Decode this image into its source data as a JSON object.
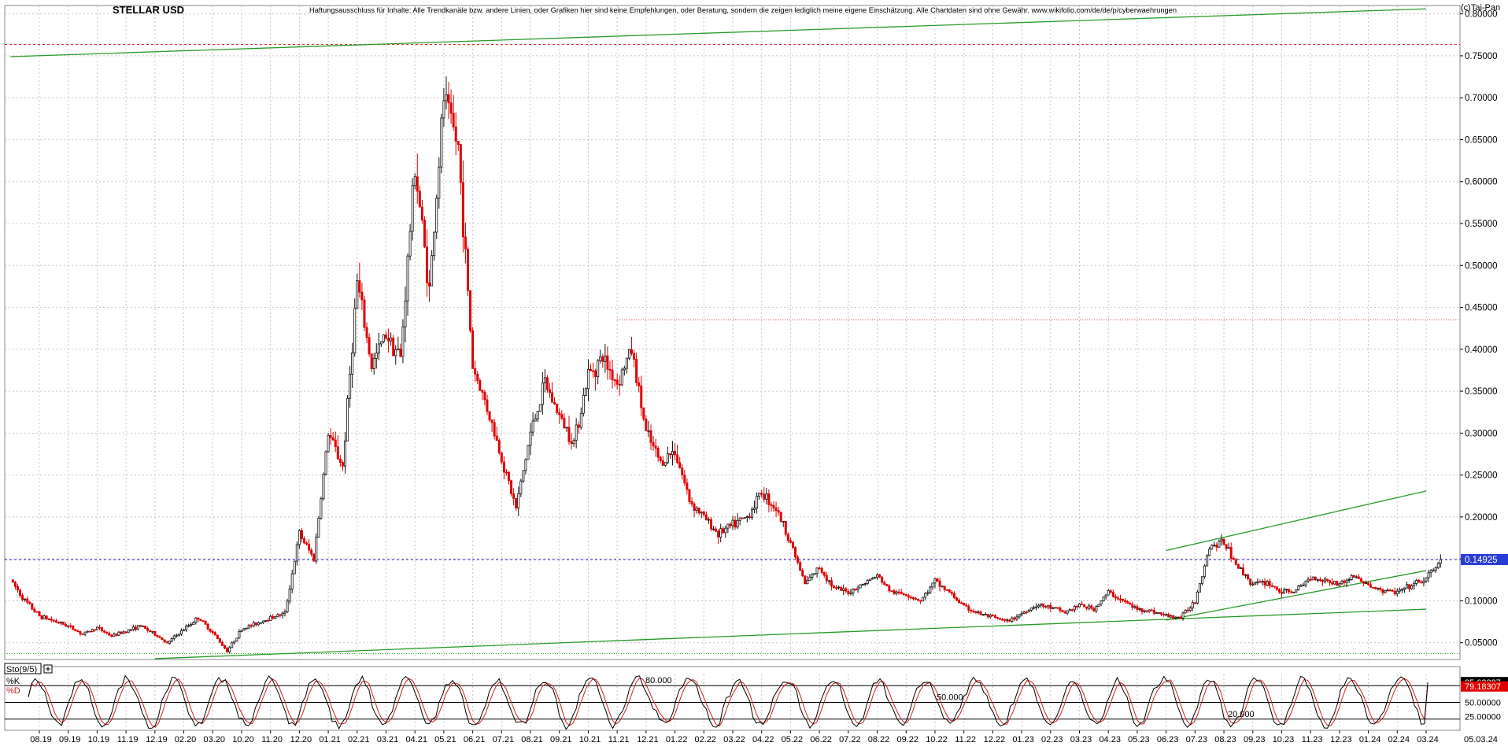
{
  "chart_data": [
    {
      "type": "candlestick",
      "title": "STELLAR USD",
      "disclaimer": "Haftungsausschluss für Inhalte: Alle Trendkanäle bzw. andere Linien, oder Grafiken hier sind keine Empfehlungen, oder Beratung, sondern die zeigen lediglich meine eigene Einschätzung. Alle Chartdaten sind ohne Gewähr.  www.wikifolio.com/de/de/p/cyberwaehrungen",
      "watermark": "(c)Tai-Pan",
      "ylim": [
        0.03,
        0.81
      ],
      "yticks": [
        "0.80000",
        "0.75000",
        "0.70000",
        "0.65000",
        "0.60000",
        "0.55000",
        "0.50000",
        "0.45000",
        "0.40000",
        "0.35000",
        "0.30000",
        "0.25000",
        "0.20000",
        "0.15000",
        "0.10000",
        "0.05000"
      ],
      "ytick_values": [
        0.8,
        0.75,
        0.7,
        0.65,
        0.6,
        0.55,
        0.5,
        0.45,
        0.4,
        0.35,
        0.3,
        0.25,
        0.2,
        0.15,
        0.1,
        0.05
      ],
      "xticks": [
        "08.19",
        "09.19",
        "10.19",
        "11.19",
        "12.19",
        "02.20",
        "03.20",
        "10.20",
        "11.20",
        "12.20",
        "01.21",
        "02.21",
        "03.21",
        "04.21",
        "05.21",
        "06.21",
        "07.21",
        "08.21",
        "09.21",
        "10.21",
        "11.21",
        "12.21",
        "01.22",
        "02.22",
        "03.22",
        "04.22",
        "05.22",
        "06.22",
        "07.22",
        "08.22",
        "09.22",
        "10.22",
        "11.22",
        "12.22",
        "01.23",
        "02.23",
        "03.23",
        "04.23",
        "05.23",
        "06.23",
        "07.23",
        "08.23",
        "09.23",
        "10.23",
        "11.23",
        "12.23",
        "01.24",
        "02.24",
        "03.24"
      ],
      "last_date": "05.03.24",
      "current_price_label": "0.14925",
      "current_price": 0.14925,
      "grid": true,
      "reference_lines": [
        {
          "kind": "horizontal",
          "value": 0.7635,
          "color": "#e03030",
          "style": "dashed"
        },
        {
          "kind": "horizontal",
          "value": 0.14925,
          "color": "#2020d0",
          "style": "dashed"
        },
        {
          "kind": "horizontal",
          "value": 0.435,
          "color": "#e03030",
          "style": "dotted",
          "from_date": "11.21"
        },
        {
          "kind": "horizontal",
          "value": 0.037,
          "color": "#30b030",
          "style": "dotted"
        }
      ],
      "trend_lines": [
        {
          "from": [
            "07.19",
            0.749
          ],
          "to": [
            "03.24",
            0.806
          ],
          "color": "#2a9a2a"
        },
        {
          "from": [
            "12.19",
            0.031
          ],
          "to": [
            "03.24",
            0.09
          ],
          "color": "#2a9a2a"
        },
        {
          "from": [
            "06.23",
            0.16
          ],
          "to": [
            "03.24",
            0.231
          ],
          "color": "#2a9a2a"
        },
        {
          "from": [
            "06.23",
            0.077
          ],
          "to": [
            "03.24",
            0.136
          ],
          "color": "#2a9a2a"
        }
      ],
      "price_path": [
        [
          "07.19",
          0.125
        ],
        [
          "07.19",
          0.1
        ],
        [
          "08.19",
          0.082
        ],
        [
          "09.19",
          0.07
        ],
        [
          "09.19",
          0.06
        ],
        [
          "10.19",
          0.068
        ],
        [
          "10.19",
          0.058
        ],
        [
          "11.19",
          0.064
        ],
        [
          "11.19",
          0.07
        ],
        [
          "12.19",
          0.06
        ],
        [
          "12.19",
          0.048
        ],
        [
          "01.20",
          0.052
        ],
        [
          "02.20",
          0.066
        ],
        [
          "02.20",
          0.08
        ],
        [
          "03.20",
          0.062
        ],
        [
          "03.20",
          0.04
        ],
        [
          "10.20",
          0.066
        ],
        [
          "11.20",
          0.08
        ],
        [
          "11.20",
          0.085
        ],
        [
          "12.20",
          0.18
        ],
        [
          "12.20",
          0.15
        ],
        [
          "01.21",
          0.3
        ],
        [
          "01.21",
          0.26
        ],
        [
          "02.21",
          0.48
        ],
        [
          "02.21",
          0.38
        ],
        [
          "03.21",
          0.42
        ],
        [
          "03.21",
          0.39
        ],
        [
          "04.21",
          0.62
        ],
        [
          "04.21",
          0.47
        ],
        [
          "05.21",
          0.7
        ],
        [
          "05.21",
          0.64
        ],
        [
          "06.21",
          0.38
        ],
        [
          "06.21",
          0.33
        ],
        [
          "07.21",
          0.27
        ],
        [
          "07.21",
          0.21
        ],
        [
          "08.21",
          0.3
        ],
        [
          "08.21",
          0.36
        ],
        [
          "09.21",
          0.32
        ],
        [
          "09.21",
          0.29
        ],
        [
          "10.21",
          0.37
        ],
        [
          "10.21",
          0.39
        ],
        [
          "11.21",
          0.36
        ],
        [
          "11.21",
          0.4
        ],
        [
          "12.21",
          0.3
        ],
        [
          "12.21",
          0.265
        ],
        [
          "01.22",
          0.28
        ],
        [
          "01.22",
          0.22
        ],
        [
          "02.22",
          0.2
        ],
        [
          "02.22",
          0.18
        ],
        [
          "03.22",
          0.19
        ],
        [
          "03.22",
          0.2
        ],
        [
          "04.22",
          0.23
        ],
        [
          "04.22",
          0.21
        ],
        [
          "05.22",
          0.17
        ],
        [
          "05.22",
          0.12
        ],
        [
          "06.22",
          0.14
        ],
        [
          "06.22",
          0.115
        ],
        [
          "07.22",
          0.11
        ],
        [
          "07.22",
          0.12
        ],
        [
          "08.22",
          0.13
        ],
        [
          "08.22",
          0.11
        ],
        [
          "09.22",
          0.108
        ],
        [
          "09.22",
          0.1
        ],
        [
          "10.22",
          0.123
        ],
        [
          "10.22",
          0.11
        ],
        [
          "11.22",
          0.093
        ],
        [
          "11.22",
          0.085
        ],
        [
          "12.22",
          0.08
        ],
        [
          "12.22",
          0.075
        ],
        [
          "01.23",
          0.085
        ],
        [
          "01.23",
          0.095
        ],
        [
          "02.23",
          0.092
        ],
        [
          "02.23",
          0.086
        ],
        [
          "03.23",
          0.095
        ],
        [
          "03.23",
          0.09
        ],
        [
          "04.23",
          0.11
        ],
        [
          "04.23",
          0.1
        ],
        [
          "05.23",
          0.09
        ],
        [
          "05.23",
          0.088
        ],
        [
          "06.23",
          0.082
        ],
        [
          "06.23",
          0.08
        ],
        [
          "07.23",
          0.1
        ],
        [
          "07.23",
          0.165
        ],
        [
          "08.23",
          0.17
        ],
        [
          "08.23",
          0.14
        ],
        [
          "09.23",
          0.12
        ],
        [
          "09.23",
          0.122
        ],
        [
          "10.23",
          0.11
        ],
        [
          "10.23",
          0.112
        ],
        [
          "11.23",
          0.128
        ],
        [
          "11.23",
          0.125
        ],
        [
          "12.23",
          0.12
        ],
        [
          "12.23",
          0.13
        ],
        [
          "01.24",
          0.118
        ],
        [
          "01.24",
          0.112
        ],
        [
          "02.24",
          0.11
        ],
        [
          "02.24",
          0.118
        ],
        [
          "03.24",
          0.126
        ],
        [
          "03.24",
          0.149
        ]
      ]
    },
    {
      "type": "line",
      "indicator": "Sto(9/5)",
      "ylim": [
        0,
        100
      ],
      "levels": [
        {
          "label": "80.000",
          "value": 80
        },
        {
          "label": "50.000",
          "value": 50
        },
        {
          "label": "20.000",
          "value": 20
        }
      ],
      "ytick_labels": [
        {
          "label": "85.63387",
          "value": 85.63
        },
        {
          "label": "79.18307",
          "value": 79.18
        },
        {
          "label": "50.00000",
          "value": 50
        },
        {
          "label": "25.00000",
          "value": 25
        }
      ],
      "series": [
        {
          "name": "%K",
          "color": "#000000",
          "last": 85.63387
        },
        {
          "name": "%D",
          "color": "#d02020",
          "last": 79.18307
        }
      ]
    }
  ],
  "colors": {
    "up_candle": "#111111",
    "down_candle": "#e00000",
    "grid": "#c8c8c8",
    "trend": "#2a9a2a",
    "price_marker_bg": "#2a3bd6"
  }
}
